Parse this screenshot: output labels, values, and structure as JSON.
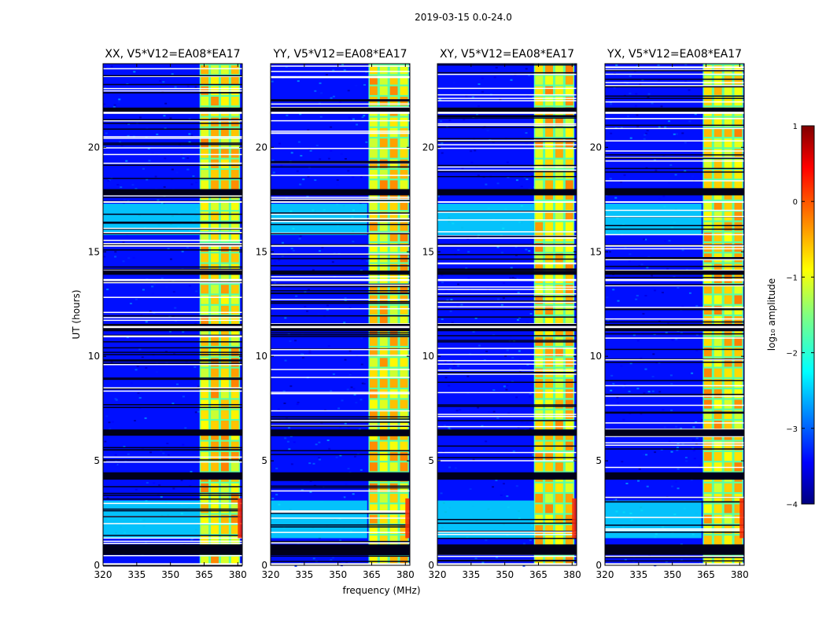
{
  "chart_data": {
    "type": "heatmap",
    "suptitle": "2019-03-15 0.0-24.0",
    "xlabel": "frequency (MHz)",
    "ylabel": "UT (hours)",
    "xlim": [
      320,
      382
    ],
    "ylim": [
      0,
      24
    ],
    "xticks": [
      "320",
      "335",
      "350",
      "365",
      "380"
    ],
    "xtick_values": [
      320,
      335,
      350,
      365,
      380
    ],
    "yticks": [
      "0",
      "5",
      "10",
      "15",
      "20"
    ],
    "ytick_values": [
      0,
      5,
      10,
      15,
      20
    ],
    "panels": [
      {
        "title": "XX, V5*V12=EA08*EA17",
        "polarization": "XX"
      },
      {
        "title": "YY, V5*V12=EA08*EA17",
        "polarization": "YY"
      },
      {
        "title": "XY, V5*V12=EA08*EA17",
        "polarization": "XY"
      },
      {
        "title": "YX, V5*V12=EA08*EA17",
        "polarization": "YX"
      }
    ],
    "colorbar": {
      "label": "log₁₀ amplitude",
      "range": [
        -4,
        1
      ],
      "ticks": [
        "1",
        "0",
        "−1",
        "−2",
        "−3",
        "−4"
      ],
      "tick_values": [
        1,
        0,
        -1,
        -2,
        -3,
        -4
      ],
      "colormap": "jet"
    },
    "features": {
      "signal_band_mhz": [
        363,
        381
      ],
      "signal_band_offset_mhz": {
        "XX": 0,
        "YY": 0.6,
        "XY": 0,
        "YX": 0.6
      },
      "band_subchannel_count": 4,
      "background_log10_amplitude": -3.3,
      "band_log10_amplitude": -0.6,
      "flagged_gap_ut_hours": [
        [
          0.5,
          1.0
        ],
        [
          4.1,
          4.45
        ],
        [
          6.2,
          6.5
        ],
        [
          11.2,
          11.55
        ],
        [
          13.9,
          14.1
        ],
        [
          17.7,
          18.0
        ],
        [
          21.7,
          21.9
        ]
      ],
      "blank_white_ut_hours": [
        [
          0.0,
          0.1
        ],
        [
          11.35,
          11.45
        ],
        [
          21.6,
          21.7
        ],
        [
          13.6,
          13.7
        ],
        [
          15.25,
          15.32
        ],
        [
          17.35,
          17.42
        ]
      ],
      "low_freq_enhancement_ut_hours": [
        [
          1.3,
          3.1
        ],
        [
          15.8,
          17.3
        ]
      ],
      "edge_spike_ut_hours": [
        1.3,
        3.2
      ],
      "edge_spike_freq_mhz": [
        380,
        382
      ]
    }
  }
}
